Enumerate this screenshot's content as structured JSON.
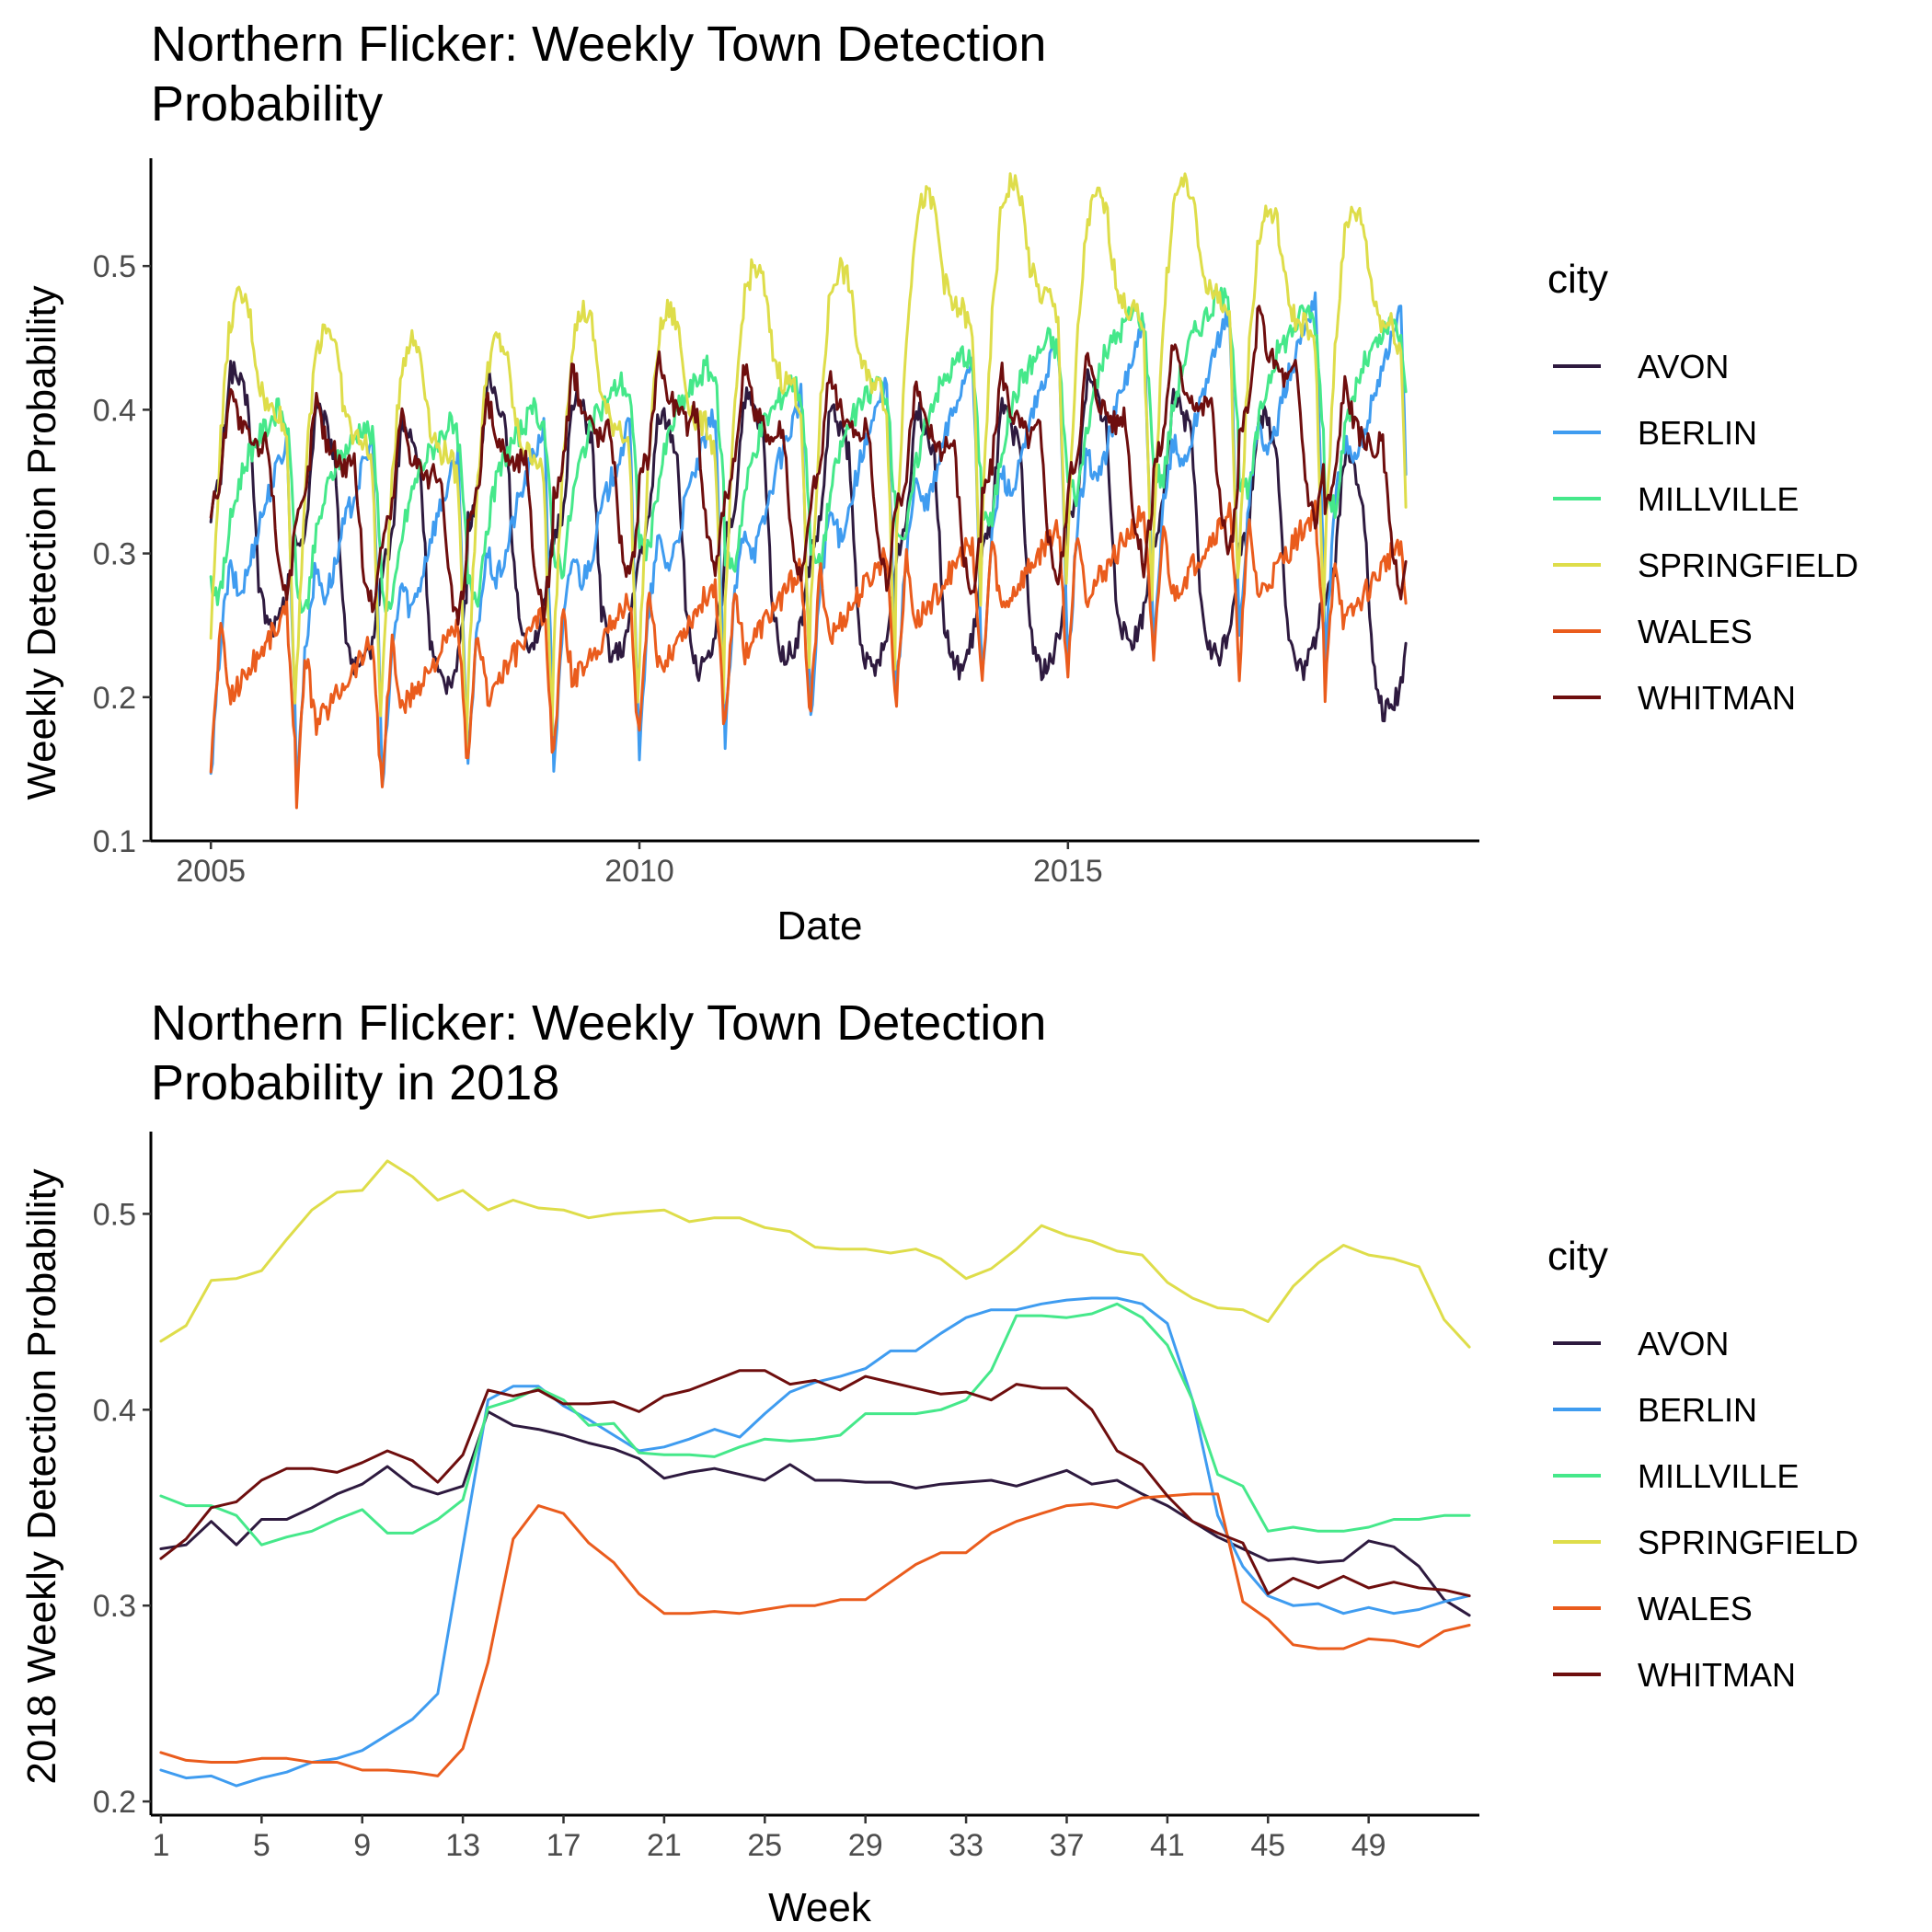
{
  "legend_colors": {
    "AVON": "#2e1a3f",
    "BERLIN": "#3f9cf0",
    "MILLVILLE": "#45e88a",
    "SPRINGFIELD": "#dedd4a",
    "WALES": "#ea5c1d",
    "WHITMAN": "#6e0e0e"
  },
  "chart_data": [
    {
      "type": "line",
      "title": "Northern Flicker: Weekly Town Detection Probability",
      "title_lines": [
        "Northern Flicker: Weekly Town Detection",
        "Probability"
      ],
      "xlabel": "Date",
      "ylabel": "Weekly Detection Probability",
      "xlim": [
        2004.3,
        2019.8
      ],
      "ylim": [
        0.1,
        0.575
      ],
      "xticks": [
        2005,
        2010,
        2015
      ],
      "xtick_labels": [
        "2005",
        "2010",
        "2015"
      ],
      "yticks": [
        0.1,
        0.2,
        0.3,
        0.4,
        0.5
      ],
      "ytick_labels": [
        "0.1",
        "0.2",
        "0.3",
        "0.4",
        "0.5"
      ],
      "grid": false,
      "legend_title": "city",
      "legend_position": "right",
      "x_start": 2005.0,
      "x_end": 2018.96,
      "series": [
        {
          "name": "AVON",
          "cycle": [
            0.33,
            0.35,
            0.43,
            0.42,
            0.4,
            0.28,
            0.25,
            0.25,
            0.27,
            0.32
          ],
          "trend": [
            0.0,
            -0.03,
            -0.04,
            -0.01,
            -0.02,
            -0.03,
            -0.02,
            -0.03,
            -0.03,
            -0.03,
            -0.01,
            -0.02,
            -0.03,
            -0.06
          ]
        },
        {
          "name": "BERLIN",
          "cycle": [
            0.15,
            0.25,
            0.3,
            0.28,
            0.3,
            0.33,
            0.35,
            0.37,
            0.39,
            0.16
          ],
          "trend": [
            -0.01,
            -0.01,
            -0.02,
            0.0,
            0.0,
            0.01,
            0.02,
            0.03,
            0.05,
            0.06,
            0.07,
            0.08,
            0.09,
            0.08
          ]
        },
        {
          "name": "MILLVILLE",
          "cycle": [
            0.28,
            0.27,
            0.32,
            0.35,
            0.37,
            0.38,
            0.39,
            0.4,
            0.39,
            0.3
          ],
          "trend": [
            0.0,
            -0.01,
            -0.01,
            0.0,
            0.02,
            0.03,
            0.02,
            0.02,
            0.04,
            0.05,
            0.07,
            0.08,
            0.07,
            0.06
          ]
        },
        {
          "name": "SPRINGFIELD",
          "cycle": [
            0.24,
            0.38,
            0.46,
            0.48,
            0.47,
            0.42,
            0.4,
            0.4,
            0.38,
            0.16
          ],
          "trend": [
            0.0,
            -0.02,
            -0.03,
            -0.03,
            -0.01,
            -0.01,
            0.02,
            0.02,
            0.07,
            0.08,
            0.07,
            0.08,
            0.06,
            0.06
          ]
        },
        {
          "name": "WALES",
          "cycle": [
            0.15,
            0.25,
            0.2,
            0.21,
            0.22,
            0.23,
            0.24,
            0.25,
            0.26,
            0.15
          ],
          "trend": [
            0.0,
            -0.02,
            -0.01,
            0.0,
            0.01,
            0.02,
            0.03,
            0.04,
            0.05,
            0.06,
            0.07,
            0.07,
            0.07,
            0.05
          ]
        },
        {
          "name": "WHITMAN",
          "cycle": [
            0.33,
            0.35,
            0.42,
            0.39,
            0.38,
            0.37,
            0.38,
            0.3,
            0.27,
            0.32
          ],
          "trend": [
            0.0,
            -0.01,
            -0.02,
            -0.01,
            0.01,
            0.02,
            0.01,
            0.01,
            0.0,
            0.01,
            0.02,
            0.03,
            0.05,
            0.0
          ]
        }
      ]
    },
    {
      "type": "line",
      "title": "Northern Flicker: Weekly Town Detection Probability in 2018",
      "title_lines": [
        "Northern Flicker: Weekly Town Detection",
        "Probability in 2018"
      ],
      "xlabel": "Week",
      "ylabel": "2018 Weekly Detection Probability",
      "xlim": [
        0.6,
        53.4
      ],
      "ylim": [
        0.193,
        0.542
      ],
      "xticks": [
        1,
        5,
        9,
        13,
        17,
        21,
        25,
        29,
        33,
        37,
        41,
        45,
        49
      ],
      "xtick_labels": [
        "1",
        "5",
        "9",
        "13",
        "17",
        "21",
        "25",
        "29",
        "33",
        "37",
        "41",
        "45",
        "49"
      ],
      "yticks": [
        0.2,
        0.3,
        0.4,
        0.5
      ],
      "ytick_labels": [
        "0.2",
        "0.3",
        "0.4",
        "0.5"
      ],
      "grid": false,
      "legend_title": "city",
      "legend_position": "right",
      "x": [
        1,
        2,
        3,
        4,
        5,
        6,
        7,
        8,
        9,
        10,
        11,
        12,
        13,
        14,
        15,
        16,
        17,
        18,
        19,
        20,
        21,
        22,
        23,
        24,
        25,
        26,
        27,
        28,
        29,
        30,
        31,
        32,
        33,
        34,
        35,
        36,
        37,
        38,
        39,
        40,
        41,
        42,
        43,
        44,
        45,
        46,
        47,
        48,
        49,
        50,
        51,
        52,
        53
      ],
      "series": [
        {
          "name": "AVON",
          "values": [
            0.329,
            0.331,
            0.343,
            0.331,
            0.344,
            0.344,
            0.35,
            0.357,
            0.362,
            0.371,
            0.361,
            0.357,
            0.361,
            0.399,
            0.392,
            0.39,
            0.387,
            0.383,
            0.38,
            0.375,
            0.365,
            0.368,
            0.37,
            0.367,
            0.364,
            0.372,
            0.364,
            0.364,
            0.363,
            0.363,
            0.36,
            0.362,
            0.363,
            0.364,
            0.361,
            0.365,
            0.369,
            0.362,
            0.364,
            0.357,
            0.351,
            0.343,
            0.335,
            0.329,
            0.323,
            0.324,
            0.322,
            0.323,
            0.333,
            0.33,
            0.32,
            0.303,
            0.295
          ]
        },
        {
          "name": "BERLIN",
          "values": [
            0.216,
            0.212,
            0.213,
            0.208,
            0.212,
            0.215,
            0.22,
            0.222,
            0.226,
            0.234,
            0.242,
            0.255,
            0.33,
            0.405,
            0.412,
            0.412,
            0.402,
            0.395,
            0.387,
            0.379,
            0.381,
            0.385,
            0.39,
            0.386,
            0.398,
            0.409,
            0.414,
            0.417,
            0.421,
            0.43,
            0.43,
            0.439,
            0.447,
            0.451,
            0.451,
            0.454,
            0.456,
            0.457,
            0.457,
            0.454,
            0.444,
            0.405,
            0.346,
            0.32,
            0.305,
            0.3,
            0.301,
            0.296,
            0.299,
            0.296,
            0.298,
            0.302,
            0.305
          ]
        },
        {
          "name": "MILLVILLE",
          "values": [
            0.356,
            0.351,
            0.351,
            0.346,
            0.331,
            0.335,
            0.338,
            0.344,
            0.349,
            0.337,
            0.337,
            0.344,
            0.354,
            0.401,
            0.405,
            0.411,
            0.405,
            0.392,
            0.393,
            0.378,
            0.377,
            0.377,
            0.376,
            0.381,
            0.385,
            0.384,
            0.385,
            0.387,
            0.398,
            0.398,
            0.398,
            0.4,
            0.405,
            0.42,
            0.448,
            0.448,
            0.447,
            0.449,
            0.454,
            0.447,
            0.433,
            0.405,
            0.367,
            0.361,
            0.338,
            0.34,
            0.338,
            0.338,
            0.34,
            0.344,
            0.344,
            0.346,
            0.346
          ]
        },
        {
          "name": "SPRINGFIELD",
          "values": [
            0.435,
            0.443,
            0.466,
            0.467,
            0.471,
            0.487,
            0.502,
            0.511,
            0.512,
            0.527,
            0.519,
            0.507,
            0.512,
            0.502,
            0.507,
            0.503,
            0.502,
            0.498,
            0.5,
            0.501,
            0.502,
            0.496,
            0.498,
            0.498,
            0.493,
            0.491,
            0.483,
            0.482,
            0.482,
            0.48,
            0.482,
            0.477,
            0.467,
            0.472,
            0.482,
            0.494,
            0.489,
            0.486,
            0.481,
            0.479,
            0.465,
            0.457,
            0.452,
            0.451,
            0.445,
            0.463,
            0.475,
            0.484,
            0.479,
            0.477,
            0.473,
            0.446,
            0.432
          ]
        },
        {
          "name": "WALES",
          "values": [
            0.225,
            0.221,
            0.22,
            0.22,
            0.222,
            0.222,
            0.22,
            0.22,
            0.216,
            0.216,
            0.215,
            0.213,
            0.227,
            0.271,
            0.334,
            0.351,
            0.347,
            0.332,
            0.322,
            0.306,
            0.296,
            0.296,
            0.297,
            0.296,
            0.298,
            0.3,
            0.3,
            0.303,
            0.303,
            0.312,
            0.321,
            0.327,
            0.327,
            0.337,
            0.343,
            0.347,
            0.351,
            0.352,
            0.35,
            0.355,
            0.356,
            0.357,
            0.357,
            0.302,
            0.293,
            0.28,
            0.278,
            0.278,
            0.283,
            0.282,
            0.279,
            0.287,
            0.29
          ]
        },
        {
          "name": "WHITMAN",
          "values": [
            0.324,
            0.334,
            0.35,
            0.353,
            0.364,
            0.37,
            0.37,
            0.368,
            0.373,
            0.379,
            0.374,
            0.363,
            0.377,
            0.41,
            0.407,
            0.41,
            0.403,
            0.403,
            0.404,
            0.399,
            0.407,
            0.41,
            0.415,
            0.42,
            0.42,
            0.413,
            0.415,
            0.41,
            0.417,
            0.414,
            0.411,
            0.408,
            0.409,
            0.405,
            0.413,
            0.411,
            0.411,
            0.4,
            0.379,
            0.372,
            0.356,
            0.343,
            0.337,
            0.332,
            0.306,
            0.314,
            0.309,
            0.315,
            0.309,
            0.312,
            0.309,
            0.308,
            0.305
          ]
        }
      ]
    }
  ]
}
